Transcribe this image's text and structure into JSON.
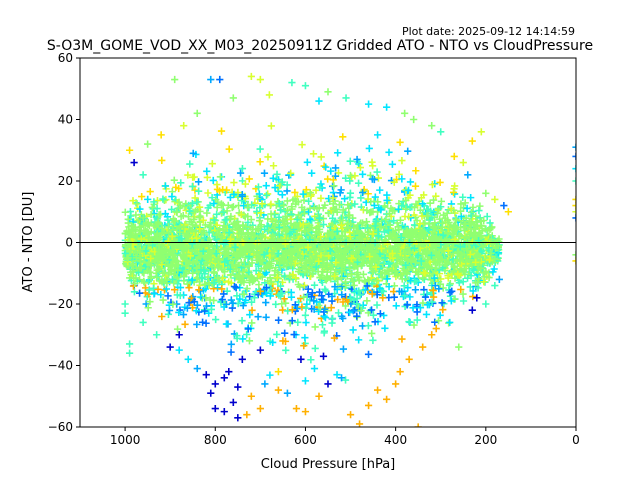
{
  "header": {
    "plot_date": "Plot date: 2025-09-12 14:14:59"
  },
  "chart_data": {
    "type": "scatter",
    "title": "S-O3M_GOME_VOD_XX_M03_20250911Z Gridded ATO - NTO vs CloudPressure",
    "xlabel": "Cloud Pressure [hPa]",
    "ylabel": "ATO - NTO [DU]",
    "xlim": [
      1100,
      0
    ],
    "ylim": [
      -60,
      60
    ],
    "x_reversed": true,
    "xticks": [
      1000,
      800,
      600,
      400,
      200,
      0
    ],
    "yticks": [
      -60,
      -40,
      -20,
      0,
      20,
      40,
      60
    ],
    "grid": false,
    "legend": "none",
    "marker": "+",
    "reference_line": {
      "y": 0,
      "color": "#000000"
    },
    "color_palette": [
      "#0000cd",
      "#0070ff",
      "#00a8ff",
      "#00e5ff",
      "#40ffc0",
      "#90ff70",
      "#d8ff30",
      "#ffe000",
      "#ffb000"
    ],
    "density_core": {
      "x_range": [
        1000,
        170
      ],
      "y_center": -2,
      "y_halfwidth": 12,
      "dominant_color": "#90ff70"
    },
    "points": [
      [
        890,
        53,
        "#90ff70"
      ],
      [
        810,
        53,
        "#00a8ff"
      ],
      [
        790,
        53,
        "#0070ff"
      ],
      [
        720,
        54,
        "#d8ff30"
      ],
      [
        700,
        53,
        "#d8ff30"
      ],
      [
        630,
        52,
        "#40ffc0"
      ],
      [
        600,
        51,
        "#40ffc0"
      ],
      [
        550,
        49,
        "#90ff70"
      ],
      [
        510,
        47,
        "#40ffc0"
      ],
      [
        460,
        45,
        "#00e5ff"
      ],
      [
        420,
        44,
        "#00e5ff"
      ],
      [
        380,
        42,
        "#90ff70"
      ],
      [
        360,
        40,
        "#90ff70"
      ],
      [
        320,
        38,
        "#90ff70"
      ],
      [
        300,
        36,
        "#40ffc0"
      ],
      [
        230,
        33,
        "#ffe000"
      ],
      [
        210,
        36,
        "#d8ff30"
      ],
      [
        240,
        22,
        "#00a8ff"
      ],
      [
        200,
        16,
        "#90ff70"
      ],
      [
        180,
        14,
        "#d8ff30"
      ],
      [
        160,
        12,
        "#0070ff"
      ],
      [
        150,
        10,
        "#ffe000"
      ],
      [
        990,
        30,
        "#ffe000"
      ],
      [
        980,
        26,
        "#0000cd"
      ],
      [
        960,
        22,
        "#40ffc0"
      ],
      [
        950,
        32,
        "#90ff70"
      ],
      [
        920,
        35,
        "#ffe000"
      ],
      [
        870,
        38,
        "#d8ff30"
      ],
      [
        840,
        42,
        "#90ff70"
      ],
      [
        760,
        47,
        "#90ff70"
      ],
      [
        680,
        48,
        "#d8ff30"
      ],
      [
        570,
        46,
        "#00e5ff"
      ],
      [
        440,
        35,
        "#00e5ff"
      ],
      [
        270,
        28,
        "#ffe000"
      ],
      [
        250,
        26,
        "#d8ff30"
      ],
      [
        0,
        31,
        "#00a8ff"
      ],
      [
        0,
        28,
        "#0070ff"
      ],
      [
        0,
        24,
        "#00e5ff"
      ],
      [
        0,
        20,
        "#40ffc0"
      ],
      [
        0,
        14,
        "#ffe000"
      ],
      [
        0,
        12,
        "#ffe000"
      ],
      [
        0,
        10,
        "#d8ff30"
      ],
      [
        0,
        8,
        "#0070ff"
      ],
      [
        0,
        -4,
        "#90ff70"
      ],
      [
        0,
        -6,
        "#ffe000"
      ],
      [
        1000,
        -20,
        "#40ffc0"
      ],
      [
        1000,
        -23,
        "#40ffc0"
      ],
      [
        990,
        -33,
        "#40ffc0"
      ],
      [
        990,
        -36,
        "#40ffc0"
      ],
      [
        960,
        -26,
        "#40ffc0"
      ],
      [
        930,
        -30,
        "#40ffc0"
      ],
      [
        880,
        -35,
        "#00e5ff"
      ],
      [
        860,
        -38,
        "#00e5ff"
      ],
      [
        840,
        -41,
        "#00a8ff"
      ],
      [
        820,
        -43,
        "#0000cd"
      ],
      [
        800,
        -46,
        "#0000cd"
      ],
      [
        810,
        -49,
        "#0000cd"
      ],
      [
        780,
        -44,
        "#0000cd"
      ],
      [
        770,
        -42,
        "#0000cd"
      ],
      [
        750,
        -47,
        "#0000cd"
      ],
      [
        800,
        -54,
        "#0000cd"
      ],
      [
        780,
        -55,
        "#0000cd"
      ],
      [
        760,
        -52,
        "#0000cd"
      ],
      [
        750,
        -57,
        "#0000cd"
      ],
      [
        730,
        -56,
        "#ffb000"
      ],
      [
        700,
        -54,
        "#ffb000"
      ],
      [
        720,
        -50,
        "#ffb000"
      ],
      [
        690,
        -46,
        "#00a8ff"
      ],
      [
        660,
        -48,
        "#ffb000"
      ],
      [
        640,
        -49,
        "#00a8ff"
      ],
      [
        620,
        -54,
        "#ffb000"
      ],
      [
        600,
        -55,
        "#ffb000"
      ],
      [
        570,
        -50,
        "#ffb000"
      ],
      [
        550,
        -46,
        "#0000cd"
      ],
      [
        520,
        -44,
        "#00a8ff"
      ],
      [
        500,
        -56,
        "#ffb000"
      ],
      [
        480,
        -59,
        "#ffb000"
      ],
      [
        460,
        -53,
        "#ffb000"
      ],
      [
        440,
        -48,
        "#ffb000"
      ],
      [
        420,
        -51,
        "#ffb000"
      ],
      [
        400,
        -46,
        "#ffb000"
      ],
      [
        390,
        -42,
        "#ffb000"
      ],
      [
        370,
        -38,
        "#ffb000"
      ],
      [
        350,
        -60,
        "#ffb000"
      ],
      [
        340,
        -34,
        "#ffb000"
      ],
      [
        310,
        -28,
        "#ffb000"
      ],
      [
        280,
        -26,
        "#00e5ff"
      ],
      [
        260,
        -34,
        "#90ff70"
      ],
      [
        230,
        -22,
        "#0000cd"
      ],
      [
        220,
        -18,
        "#0000cd"
      ],
      [
        200,
        -20,
        "#40ffc0"
      ],
      [
        180,
        -14,
        "#40ffc0"
      ],
      [
        170,
        -12,
        "#00a8ff"
      ],
      [
        660,
        -42,
        "#ffe000"
      ],
      [
        610,
        -38,
        "#0000cd"
      ],
      [
        560,
        -37,
        "#0000cd"
      ],
      [
        650,
        -32,
        "#ffb000"
      ],
      [
        700,
        -35,
        "#0000cd"
      ],
      [
        740,
        -38,
        "#0000cd"
      ],
      [
        880,
        -30,
        "#0000cd"
      ],
      [
        900,
        -34,
        "#0000cd"
      ],
      [
        580,
        -41,
        "#00e5ff"
      ],
      [
        530,
        -43,
        "#00e5ff"
      ],
      [
        600,
        -45,
        "#00e5ff"
      ],
      [
        320,
        -30,
        "#ffb000"
      ]
    ]
  }
}
